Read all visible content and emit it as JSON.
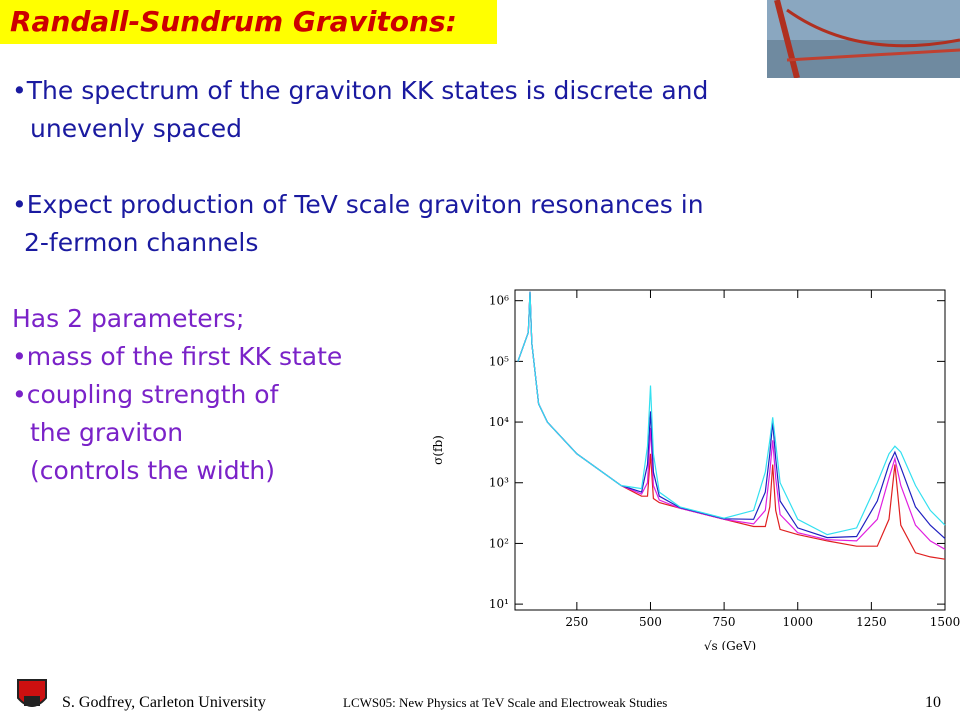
{
  "slide": {
    "title": "Randall-Sundrum Gravitons:",
    "lines": [
      "•The spectrum of the graviton KK states  is discrete and",
      "unevenly spaced",
      "•Expect production of TeV scale graviton resonances in",
      "2-fermon channels",
      "Has 2 parameters;",
      "•mass of the first KK state",
      "•coupling strength of",
      "the graviton",
      "(controls the width)"
    ],
    "footer": {
      "author": "S. Godfrey, Carleton University",
      "conference": "LCWS05: New Physics at TeV Scale and Electroweak Studies",
      "page": "10"
    }
  },
  "chart_data": {
    "type": "line",
    "xlabel": "√s (GeV)",
    "ylabel": "σ(fb)",
    "xlim": [
      40,
      1500
    ],
    "ylim": [
      8,
      1500000
    ],
    "ylog": true,
    "xticks": [
      250,
      500,
      750,
      1000,
      1250,
      1500
    ],
    "yticks": [
      {
        "value": 10,
        "label": "10¹"
      },
      {
        "value": 100,
        "label": "10²"
      },
      {
        "value": 1000,
        "label": "10³"
      },
      {
        "value": 10000,
        "label": "10⁴"
      },
      {
        "value": 100000,
        "label": "10⁵"
      },
      {
        "value": 1000000,
        "label": "10⁶"
      }
    ],
    "x": [
      50,
      85,
      91,
      97,
      120,
      150,
      250,
      400,
      470,
      490,
      500,
      510,
      530,
      600,
      750,
      850,
      890,
      905,
      915,
      925,
      940,
      1000,
      1100,
      1200,
      1270,
      1310,
      1330,
      1350,
      1400,
      1450,
      1500
    ],
    "series": [
      {
        "color": "#e02020",
        "values": [
          100000,
          300000,
          1400000,
          200000,
          20000,
          10000,
          3000,
          900,
          600,
          600,
          3000,
          550,
          470,
          380,
          250,
          190,
          190,
          400,
          2000,
          350,
          170,
          140,
          110,
          90,
          90,
          250,
          2000,
          200,
          70,
          60,
          55
        ]
      },
      {
        "color": "#e020e0",
        "values": [
          100000,
          300000,
          1400000,
          200000,
          20000,
          10000,
          3000,
          900,
          650,
          1000,
          8000,
          900,
          520,
          380,
          250,
          210,
          350,
          1500,
          5000,
          1200,
          300,
          150,
          115,
          110,
          250,
          1200,
          2500,
          900,
          200,
          110,
          80
        ]
      },
      {
        "color": "#2020c0",
        "values": [
          100000,
          300000,
          1400000,
          200000,
          20000,
          10000,
          3000,
          900,
          700,
          2000,
          15000,
          1500,
          600,
          390,
          255,
          250,
          700,
          3000,
          10000,
          2500,
          500,
          180,
          125,
          130,
          500,
          2000,
          3200,
          1800,
          400,
          200,
          120
        ]
      },
      {
        "color": "#33e0f0",
        "values": [
          100000,
          300000,
          1400000,
          200000,
          20000,
          10000,
          3000,
          900,
          800,
          4000,
          40000,
          3000,
          700,
          400,
          260,
          350,
          1500,
          5000,
          12000,
          4500,
          1000,
          250,
          140,
          180,
          1000,
          3000,
          4000,
          3200,
          900,
          350,
          200
        ]
      }
    ]
  }
}
